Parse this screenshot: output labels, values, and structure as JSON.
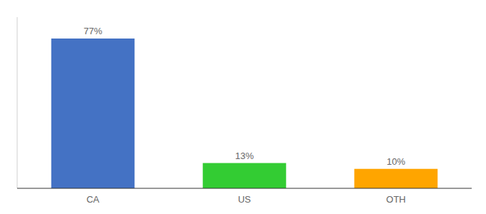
{
  "chart_data": {
    "type": "bar",
    "categories": [
      "CA",
      "US",
      "OTH"
    ],
    "values": [
      77,
      13,
      10
    ],
    "value_labels": [
      "77%",
      "13%",
      "10%"
    ],
    "colors": [
      "#4472C4",
      "#33CC33",
      "#FFA500"
    ],
    "ylim": [
      0,
      88
    ],
    "data_labels": true,
    "tick_labels": "x",
    "grid": false
  }
}
